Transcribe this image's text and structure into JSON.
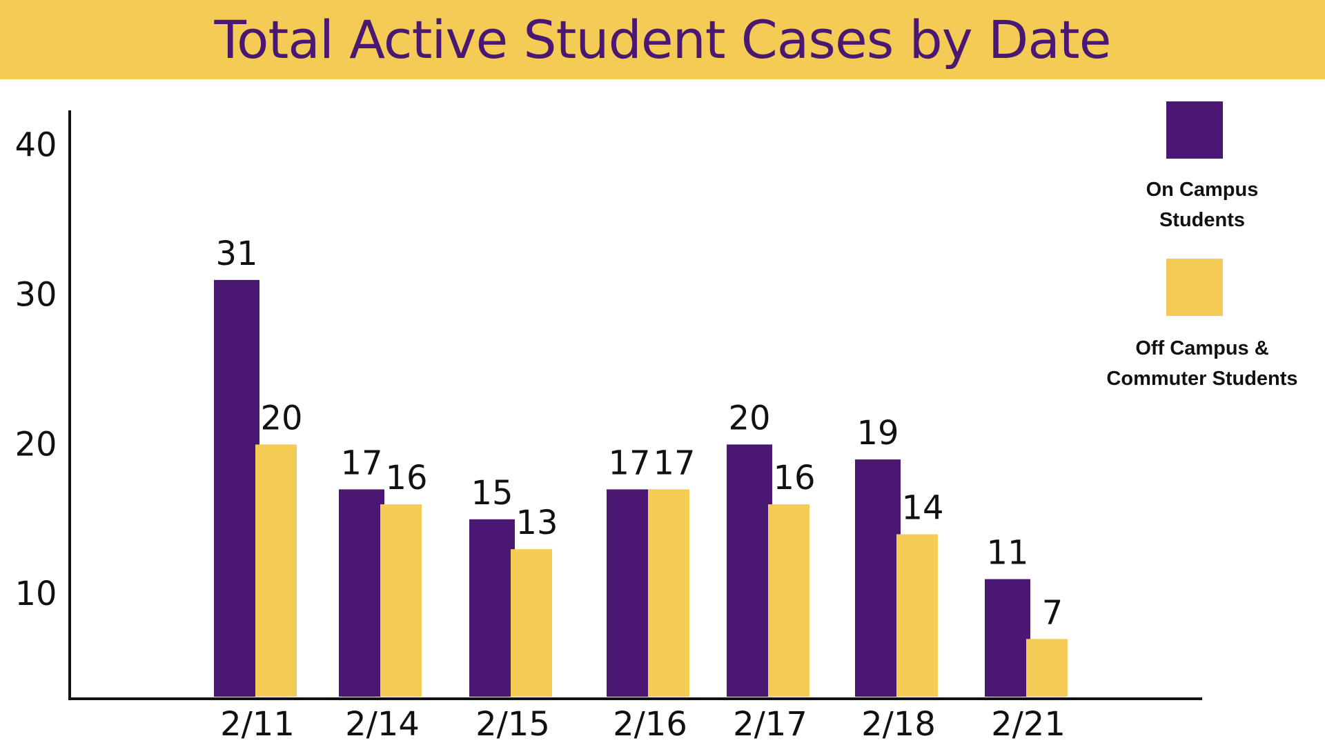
{
  "colors": {
    "banner": "#F4CB55",
    "title": "#4A1772",
    "on_campus": "#4A1772",
    "off_campus": "#F4CB55",
    "axis": "#111111"
  },
  "chart_data": {
    "type": "bar",
    "title": "Total Active Student Cases by Date",
    "xlabel": "",
    "ylabel": "",
    "categories": [
      "2/11",
      "2/14",
      "2/15",
      "2/16",
      "2/17",
      "2/18",
      "2/21"
    ],
    "y_ticks": [
      "10",
      "20",
      "30",
      "40"
    ],
    "ylim": [
      3,
      41
    ],
    "grid": false,
    "legend_position": "right",
    "series": [
      {
        "name_lines": [
          "On Campus",
          "Students"
        ],
        "values": [
          31,
          17,
          15,
          17,
          20,
          19,
          11
        ],
        "labels": [
          "31",
          "17",
          "15",
          "17",
          "20",
          "19",
          "11"
        ]
      },
      {
        "name_lines": [
          "Off Campus &",
          "Commuter Students"
        ],
        "values": [
          20,
          16,
          13,
          17,
          16,
          14,
          7
        ],
        "labels": [
          "20",
          "16",
          "13",
          "17",
          "16",
          "14",
          "7"
        ]
      }
    ]
  }
}
